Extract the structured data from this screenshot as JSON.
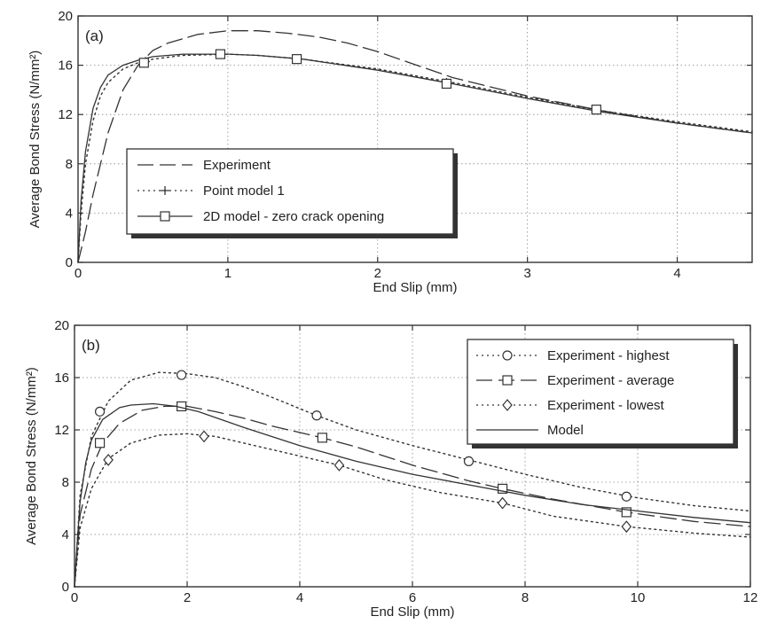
{
  "chart_data": [
    {
      "type": "line",
      "panel_label": "(a)",
      "xlabel": "End Slip (mm)",
      "ylabel": "Average Bond Stress (N/mm²)",
      "xlim": [
        0,
        4.5
      ],
      "ylim": [
        0,
        20
      ],
      "xticks": [
        0,
        1,
        2,
        3,
        4
      ],
      "yticks": [
        0,
        4,
        8,
        12,
        16,
        20
      ],
      "grid": true,
      "legend_position": "center-left",
      "series": [
        {
          "name": "Experiment",
          "style": "long-dash",
          "marker": "none",
          "x": [
            0,
            0.05,
            0.1,
            0.2,
            0.3,
            0.4,
            0.5,
            0.6,
            0.8,
            1.0,
            1.2,
            1.4,
            1.6,
            1.8,
            2.0,
            2.5,
            3.0,
            3.5,
            4.0,
            4.5
          ],
          "y": [
            0,
            2.5,
            5.5,
            10.5,
            14.0,
            16.0,
            17.2,
            17.8,
            18.5,
            18.8,
            18.8,
            18.6,
            18.3,
            17.8,
            17.1,
            15.0,
            13.5,
            12.3,
            11.3,
            10.5
          ]
        },
        {
          "name": "Point model 1",
          "style": "dotted",
          "marker": "plus",
          "x": [
            0,
            0.02,
            0.05,
            0.1,
            0.15,
            0.2,
            0.3,
            0.4,
            0.5,
            0.7,
            1.0,
            1.2,
            1.5,
            2.0,
            2.5,
            3.0,
            3.5,
            4.0,
            4.5
          ],
          "y": [
            0,
            4.0,
            8.0,
            11.5,
            13.5,
            14.6,
            15.7,
            16.2,
            16.5,
            16.8,
            16.9,
            16.8,
            16.5,
            15.7,
            14.6,
            13.4,
            12.3,
            11.4,
            10.6
          ],
          "marker_x": [
            0.45,
            0.97,
            1.46,
            2.46,
            3.46
          ],
          "marker_y": [
            16.3,
            16.9,
            16.5,
            14.6,
            12.4
          ]
        },
        {
          "name": "2D model - zero crack opening",
          "style": "solid",
          "marker": "square",
          "x": [
            0,
            0.02,
            0.05,
            0.1,
            0.15,
            0.2,
            0.3,
            0.4,
            0.5,
            0.7,
            1.0,
            1.2,
            1.5,
            2.0,
            2.5,
            3.0,
            3.5,
            4.0,
            4.5
          ],
          "y": [
            0,
            5.0,
            9.0,
            12.5,
            14.2,
            15.2,
            16.0,
            16.4,
            16.7,
            16.9,
            16.9,
            16.8,
            16.5,
            15.6,
            14.5,
            13.3,
            12.2,
            11.3,
            10.5
          ],
          "marker_x": [
            0.44,
            0.95,
            1.46,
            2.46,
            3.46
          ],
          "marker_y": [
            16.2,
            16.9,
            16.5,
            14.5,
            12.4
          ]
        }
      ]
    },
    {
      "type": "line",
      "panel_label": "(b)",
      "xlabel": "End Slip (mm)",
      "ylabel": "Average Bond Stress (N/mm²)",
      "xlim": [
        0,
        12
      ],
      "ylim": [
        0,
        20
      ],
      "xticks": [
        0,
        2,
        4,
        6,
        8,
        10,
        12
      ],
      "yticks": [
        0,
        4,
        8,
        12,
        16,
        20
      ],
      "grid": true,
      "legend_position": "top-right",
      "series": [
        {
          "name": "Experiment - highest",
          "style": "dotted",
          "marker": "circle",
          "x": [
            0,
            0.1,
            0.3,
            0.6,
            1.0,
            1.5,
            2.0,
            2.5,
            3.0,
            3.5,
            4.3,
            5.0,
            6.0,
            7.0,
            8.0,
            9.0,
            10.0,
            11.0,
            12.0
          ],
          "y": [
            0,
            7.0,
            11.5,
            14.2,
            15.8,
            16.4,
            16.3,
            16.0,
            15.3,
            14.5,
            13.1,
            12.0,
            10.8,
            9.7,
            8.6,
            7.6,
            6.8,
            6.2,
            5.8
          ],
          "marker_x": [
            0.45,
            1.9,
            4.3,
            7.0,
            9.8
          ],
          "marker_y": [
            13.4,
            16.2,
            13.1,
            9.6,
            6.9
          ]
        },
        {
          "name": "Experiment - average",
          "style": "long-dash",
          "marker": "square",
          "x": [
            0,
            0.1,
            0.3,
            0.5,
            0.8,
            1.2,
            1.6,
            2.0,
            2.5,
            3.0,
            3.5,
            4.4,
            5.0,
            6.0,
            7.0,
            7.6,
            8.5,
            9.8,
            11.0,
            12.0
          ],
          "y": [
            0,
            5.5,
            9.0,
            11.0,
            12.5,
            13.5,
            13.8,
            13.8,
            13.4,
            12.9,
            12.3,
            11.4,
            10.7,
            9.3,
            8.1,
            7.5,
            6.7,
            5.7,
            5.0,
            4.6
          ],
          "marker_x": [
            0.45,
            1.9,
            4.4,
            7.6,
            9.8
          ],
          "marker_y": [
            11.0,
            13.8,
            11.4,
            7.5,
            5.7
          ]
        },
        {
          "name": "Experiment - lowest",
          "style": "dotted",
          "marker": "diamond",
          "x": [
            0,
            0.1,
            0.3,
            0.6,
            1.0,
            1.5,
            2.0,
            2.5,
            3.0,
            4.0,
            4.7,
            5.5,
            6.5,
            7.6,
            8.5,
            9.8,
            11.0,
            12.0
          ],
          "y": [
            0,
            4.5,
            7.5,
            9.8,
            11.0,
            11.6,
            11.7,
            11.5,
            11.0,
            10.0,
            9.3,
            8.2,
            7.2,
            6.4,
            5.4,
            4.6,
            4.1,
            3.8
          ],
          "marker_x": [
            0.6,
            2.3,
            4.7,
            7.6,
            9.8
          ],
          "marker_y": [
            9.7,
            11.5,
            9.3,
            6.4,
            4.6
          ]
        },
        {
          "name": "Model",
          "style": "solid",
          "marker": "none",
          "x": [
            0,
            0.05,
            0.1,
            0.2,
            0.3,
            0.5,
            0.8,
            1.0,
            1.4,
            1.8,
            2.2,
            2.6,
            3.0,
            4.0,
            5.0,
            6.0,
            7.0,
            8.0,
            9.0,
            10.0,
            11.0,
            12.0
          ],
          "y": [
            0,
            3.5,
            6.5,
            9.5,
            11.2,
            12.8,
            13.7,
            13.9,
            14.0,
            13.8,
            13.4,
            12.8,
            12.2,
            10.8,
            9.6,
            8.6,
            7.8,
            7.0,
            6.3,
            5.8,
            5.3,
            4.9
          ]
        }
      ]
    }
  ]
}
